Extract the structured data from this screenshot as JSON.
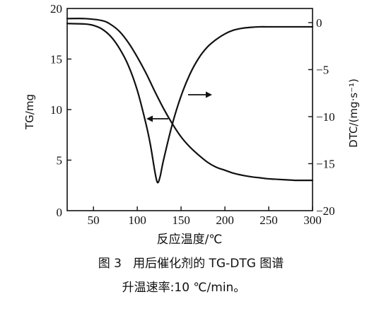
{
  "chart_data": {
    "type": "line",
    "xlabel": "反应温度/℃",
    "ylabel_left": "TG/mg",
    "ylabel_right": "DTC/(mg·s⁻¹)",
    "xlim": [
      20,
      300
    ],
    "ylim_left": [
      0,
      20
    ],
    "ylim_right": [
      -20,
      1.5
    ],
    "x_ticks": [
      50,
      100,
      150,
      200,
      250,
      300
    ],
    "x_tick_labels": [
      "50",
      "100",
      "150",
      "200",
      "250",
      "300"
    ],
    "y_left_ticks": [
      0,
      5,
      10,
      15,
      20
    ],
    "y_left_tick_labels": [
      "0",
      "5",
      "10",
      "15",
      "20"
    ],
    "y_right_ticks": [
      0,
      -5,
      -10,
      -15,
      -20
    ],
    "y_right_tick_labels": [
      "0",
      "−5",
      "−10",
      "−15",
      "−20"
    ],
    "grid": false,
    "series": [
      {
        "axis": "left",
        "x": [
          20,
          40,
          60,
          70,
          80,
          90,
          100,
          110,
          120,
          130,
          140,
          150,
          160,
          170,
          180,
          190,
          200,
          210,
          220,
          230,
          240,
          250,
          260,
          270,
          280,
          290,
          300
        ],
        "y": [
          19.0,
          19.0,
          18.8,
          18.4,
          17.7,
          16.6,
          15.2,
          13.6,
          11.8,
          10.1,
          8.6,
          7.3,
          6.3,
          5.5,
          4.8,
          4.3,
          4.0,
          3.7,
          3.5,
          3.35,
          3.25,
          3.15,
          3.1,
          3.05,
          3.0,
          3.0,
          3.0
        ]
      },
      {
        "axis": "right",
        "x": [
          20,
          40,
          50,
          60,
          70,
          80,
          90,
          100,
          110,
          115,
          120,
          123,
          126,
          130,
          140,
          150,
          160,
          170,
          180,
          190,
          200,
          210,
          220,
          230,
          240,
          250,
          260,
          270,
          280,
          290,
          300
        ],
        "y": [
          -0.1,
          -0.15,
          -0.3,
          -0.7,
          -1.5,
          -2.8,
          -4.6,
          -7.2,
          -10.8,
          -13.0,
          -15.8,
          -17.0,
          -16.4,
          -14.6,
          -10.8,
          -7.8,
          -5.5,
          -3.8,
          -2.6,
          -1.8,
          -1.2,
          -0.8,
          -0.6,
          -0.5,
          -0.45,
          -0.45,
          -0.45,
          -0.45,
          -0.45,
          -0.45,
          -0.45
        ]
      }
    ],
    "caption": "图 3   用后催化剂的 TG-DTG 图谱",
    "subcaption": "升温速率:10 ℃/min。"
  }
}
